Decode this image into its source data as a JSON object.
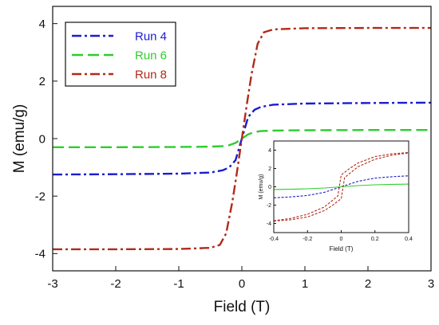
{
  "chart_data": [
    {
      "type": "line",
      "title": "",
      "xlabel": "Field (T)",
      "ylabel": "M (emu/g)",
      "xlim": [
        -3,
        3
      ],
      "ylim": [
        -4.6,
        4.6
      ],
      "xticks": [
        -3,
        -2,
        -1,
        0,
        1,
        2,
        3
      ],
      "yticks": [
        -4,
        -2,
        0,
        2,
        4
      ],
      "grid": false,
      "legend_position": "top-left",
      "series": [
        {
          "name": "Run 4",
          "color": "#1c1ccf",
          "dash": "dashdot",
          "x": [
            -3,
            -2,
            -1,
            -0.5,
            -0.3,
            -0.2,
            -0.1,
            0,
            0.1,
            0.2,
            0.3,
            0.5,
            1,
            2,
            3
          ],
          "y": [
            -1.25,
            -1.24,
            -1.22,
            -1.18,
            -1.1,
            -1.0,
            -0.75,
            0,
            0.75,
            1.0,
            1.1,
            1.18,
            1.22,
            1.24,
            1.25
          ]
        },
        {
          "name": "Run 6",
          "color": "#2ecc2e",
          "dash": "longdash",
          "x": [
            -3,
            -2,
            -1,
            -0.5,
            -0.3,
            -0.2,
            -0.1,
            0,
            0.1,
            0.2,
            0.3,
            0.5,
            1,
            2,
            3
          ],
          "y": [
            -0.3,
            -0.3,
            -0.29,
            -0.28,
            -0.26,
            -0.23,
            -0.15,
            0,
            0.15,
            0.23,
            0.26,
            0.28,
            0.29,
            0.3,
            0.3
          ]
        },
        {
          "name": "Run 8",
          "color": "#b22a1a",
          "dash": "dashdot",
          "x": [
            -3,
            -2,
            -1,
            -0.5,
            -0.35,
            -0.25,
            -0.15,
            -0.08,
            0,
            0.08,
            0.15,
            0.25,
            0.35,
            0.5,
            1,
            2,
            3
          ],
          "y": [
            -3.85,
            -3.85,
            -3.84,
            -3.8,
            -3.7,
            -3.3,
            -2.2,
            -1.2,
            0,
            1.2,
            2.2,
            3.3,
            3.7,
            3.8,
            3.84,
            3.85,
            3.85
          ]
        }
      ]
    },
    {
      "type": "line",
      "title": "",
      "xlabel": "Field (T)",
      "ylabel": "M (emu/g)",
      "xlim": [
        -0.4,
        0.4
      ],
      "ylim": [
        -5,
        5
      ],
      "xticks": [
        -0.4,
        -0.2,
        0,
        0.2,
        0.4
      ],
      "yticks": [
        -4,
        -2,
        0,
        2,
        4
      ],
      "grid": false,
      "series": [
        {
          "color": "#1c1ccf",
          "dash": "dash",
          "x": [
            -0.4,
            -0.3,
            -0.2,
            -0.1,
            0,
            0.1,
            0.2,
            0.3,
            0.4
          ],
          "y": [
            -1.2,
            -1.1,
            -0.95,
            -0.6,
            0,
            0.6,
            0.95,
            1.1,
            1.2
          ]
        },
        {
          "color": "#2ecc2e",
          "dash": "solid",
          "x": [
            -0.4,
            -0.3,
            -0.2,
            -0.1,
            0,
            0.1,
            0.2,
            0.3,
            0.4
          ],
          "y": [
            -0.3,
            -0.27,
            -0.22,
            -0.13,
            0,
            0.13,
            0.22,
            0.27,
            0.3
          ]
        },
        {
          "color": "#b22a1a",
          "dash": "dash",
          "x": [
            -0.4,
            -0.3,
            -0.2,
            -0.1,
            -0.02,
            0,
            0.05,
            0.1,
            0.2,
            0.3,
            0.4
          ],
          "y": [
            -3.7,
            -3.45,
            -3.0,
            -2.2,
            -1.0,
            1.3,
            2.0,
            2.6,
            3.3,
            3.6,
            3.75
          ]
        },
        {
          "color": "#b22a1a",
          "dash": "dash",
          "x": [
            -0.4,
            -0.3,
            -0.2,
            -0.1,
            -0.05,
            0,
            0.02,
            0.1,
            0.2,
            0.3,
            0.4
          ],
          "y": [
            -3.75,
            -3.6,
            -3.3,
            -2.6,
            -2.0,
            -1.3,
            1.0,
            2.2,
            3.0,
            3.45,
            3.7
          ]
        }
      ]
    }
  ]
}
